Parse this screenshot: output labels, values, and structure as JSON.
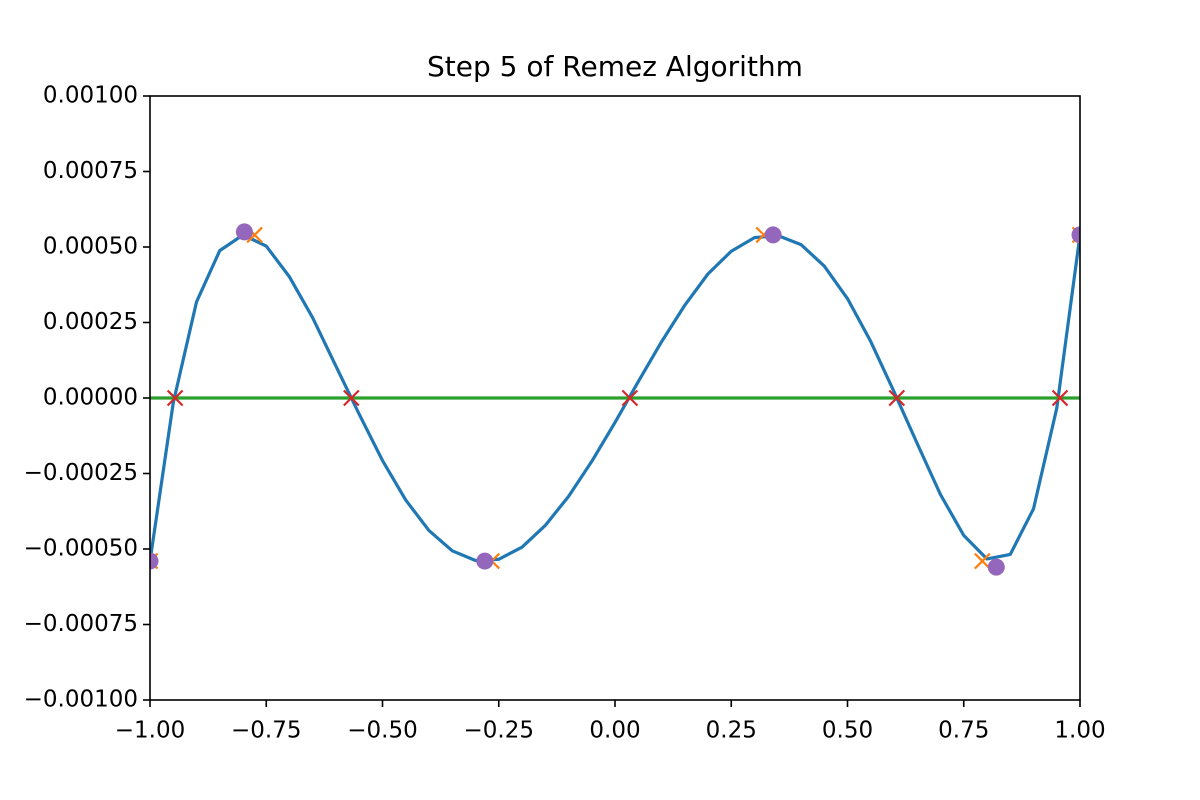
{
  "chart_data": {
    "type": "line",
    "title": "Step 5 of Remez Algorithm",
    "xlim": [
      -1,
      1
    ],
    "ylim": [
      -0.001,
      0.001
    ],
    "xticks": [
      {
        "value": -1,
        "label": "−1.00"
      },
      {
        "value": -0.75,
        "label": "−0.75"
      },
      {
        "value": -0.5,
        "label": "−0.50"
      },
      {
        "value": -0.25,
        "label": "−0.25"
      },
      {
        "value": 0,
        "label": "0.00"
      },
      {
        "value": 0.25,
        "label": "0.25"
      },
      {
        "value": 0.5,
        "label": "0.50"
      },
      {
        "value": 0.75,
        "label": "0.75"
      },
      {
        "value": 1,
        "label": "1.00"
      }
    ],
    "yticks": [
      {
        "value": -0.001,
        "label": "−0.00100"
      },
      {
        "value": -0.00075,
        "label": "−0.00075"
      },
      {
        "value": -0.0005,
        "label": "−0.00050"
      },
      {
        "value": -0.00025,
        "label": "−0.00025"
      },
      {
        "value": 0,
        "label": "0.00000"
      },
      {
        "value": 0.00025,
        "label": "0.00025"
      },
      {
        "value": 0.0005,
        "label": "0.00050"
      },
      {
        "value": 0.00075,
        "label": "0.00075"
      },
      {
        "value": 0.001,
        "label": "0.00100"
      }
    ],
    "grid": false,
    "series": [
      {
        "color": "#1f77b4",
        "linestyle": "solid",
        "marker": null,
        "x": [
          -1,
          -0.95,
          -0.9,
          -0.85,
          -0.8,
          -0.75,
          -0.7,
          -0.65,
          -0.6,
          -0.55,
          -0.5,
          -0.45,
          -0.4,
          -0.35,
          -0.3,
          -0.25,
          -0.2,
          -0.15,
          -0.1,
          -0.05,
          0,
          0.05,
          0.1,
          0.15,
          0.2,
          0.25,
          0.3,
          0.35,
          0.4,
          0.45,
          0.5,
          0.55,
          0.6,
          0.65,
          0.7,
          0.75,
          0.8,
          0.85,
          0.9,
          0.95,
          1
        ],
        "values": [
          -0.00054,
          -1.6e-05,
          0.000318,
          0.000488,
          0.00054,
          0.000503,
          0.000401,
          0.000265,
          0.000105,
          -5.4e-05,
          -0.000207,
          -0.000338,
          -0.000439,
          -0.000506,
          -0.000538,
          -0.000534,
          -0.000494,
          -0.000422,
          -0.000326,
          -0.00021,
          -8.1e-05,
          5.4e-05,
          0.000186,
          0.000307,
          0.000411,
          0.000486,
          0.000531,
          0.000538,
          0.000508,
          0.000437,
          0.000329,
          0.000187,
          2.1e-05,
          -0.000151,
          -0.00032,
          -0.000455,
          -0.000533,
          -0.000518,
          -0.000367,
          -3.4e-05,
          0.00054
        ]
      },
      {
        "color": "#ff7f0e",
        "linestyle": null,
        "marker": "x",
        "x": [
          -1,
          -0.775,
          -0.265,
          0.32,
          0.79,
          1
        ],
        "values": [
          -0.00054,
          0.00054,
          -0.00054,
          0.00054,
          -0.00054,
          0.00054
        ]
      },
      {
        "color": "#2ca02c",
        "linestyle": "solid",
        "marker": null,
        "x": [
          -1,
          1
        ],
        "values": [
          0,
          0
        ]
      },
      {
        "color": "#d62728",
        "linestyle": null,
        "marker": "x",
        "x": [
          -0.946,
          -0.567,
          0.032,
          0.606,
          0.957
        ],
        "values": [
          0,
          0,
          0,
          0,
          0
        ]
      },
      {
        "color": "#9467bd",
        "linestyle": null,
        "marker": "o",
        "x": [
          -1,
          -0.797,
          -0.28,
          0.34,
          0.82,
          1
        ],
        "values": [
          -0.00054,
          0.00055,
          -0.00054,
          0.00054,
          -0.00056,
          0.00054
        ]
      }
    ]
  }
}
